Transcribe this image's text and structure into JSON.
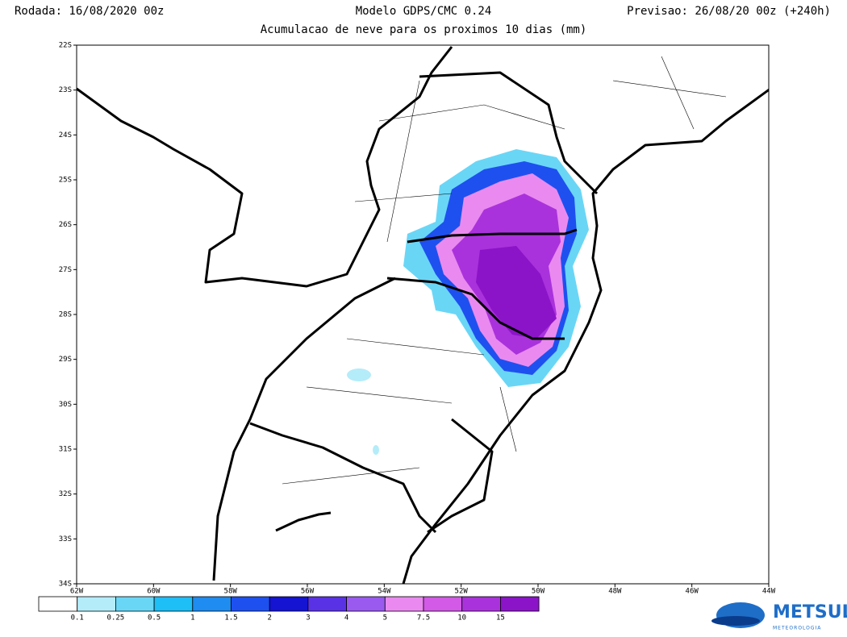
{
  "header": {
    "run": "Rodada: 16/08/2020 00z",
    "model": "Modelo GDPS/CMC 0.24",
    "forecast": "Previsao: 26/08/20 00z (+240h)",
    "subtitle": "Acumulacao de neve para os proximos 10 dias (mm)"
  },
  "map": {
    "lat_labels": [
      "22S",
      "23S",
      "24S",
      "25S",
      "26S",
      "27S",
      "28S",
      "29S",
      "30S",
      "31S",
      "32S",
      "33S",
      "34S"
    ],
    "lon_labels": [
      "62W",
      "60W",
      "58W",
      "56W",
      "54W",
      "52W",
      "50W",
      "48W",
      "46W",
      "44W"
    ]
  },
  "colorbar": {
    "colors": [
      "#ffffff",
      "#b4ecfa",
      "#6ad6f6",
      "#1ebef6",
      "#1e8cf0",
      "#1e50f0",
      "#1414d2",
      "#5a32e6",
      "#9a5af0",
      "#ea8af0",
      "#d25ae6",
      "#aa32dc",
      "#8c14c8"
    ],
    "labels": [
      0.1,
      0.25,
      0.5,
      1,
      1.5,
      2,
      3,
      4,
      5,
      7.5,
      10,
      15
    ]
  },
  "logo": {
    "name": "METSUL",
    "tagline": "METEOROLOGIA"
  }
}
